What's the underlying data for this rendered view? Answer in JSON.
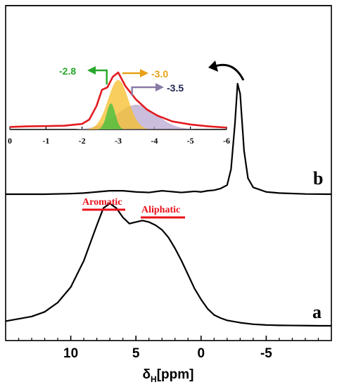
{
  "chart_data": [
    {
      "type": "line",
      "xlabel_main": "δ",
      "xlabel_sub": "H",
      "xlabel_unit": "[ppm]",
      "xlim": [
        15,
        -10
      ],
      "x_reversed": true,
      "xticks": [
        10,
        5,
        0,
        -5
      ],
      "xtick_labels": [
        "10",
        "5",
        "0",
        "-5"
      ],
      "series": [
        {
          "name": "a",
          "x": [
            15,
            13,
            12,
            11,
            10,
            9,
            8,
            7.5,
            7,
            6.5,
            6,
            5.5,
            5,
            4.5,
            4,
            3.5,
            3,
            2.5,
            2,
            1.5,
            1,
            0.5,
            0,
            -0.5,
            -1,
            -1.5,
            -2,
            -3,
            -4,
            -5,
            -6,
            -7,
            -8,
            -9,
            -10
          ],
          "y": [
            0.03,
            0.06,
            0.09,
            0.15,
            0.25,
            0.42,
            0.65,
            0.76,
            0.79,
            0.76,
            0.7,
            0.66,
            0.67,
            0.68,
            0.67,
            0.65,
            0.62,
            0.57,
            0.5,
            0.42,
            0.33,
            0.24,
            0.17,
            0.11,
            0.07,
            0.05,
            0.035,
            0.02,
            0.01,
            0.005,
            0.003,
            0.002,
            0.001,
            0.0,
            0.0
          ]
        },
        {
          "name": "b",
          "x": [
            15,
            12,
            10,
            9,
            8,
            7,
            6,
            5,
            4,
            3,
            2.5,
            2,
            1.5,
            1,
            0.5,
            0,
            -0.5,
            -1,
            -1.5,
            -2,
            -2.3,
            -2.6,
            -2.8,
            -3.0,
            -3.3,
            -3.6,
            -4,
            -5,
            -6,
            -8,
            -10
          ],
          "y": [
            0.0,
            0.0,
            0.005,
            0.01,
            0.02,
            0.03,
            0.03,
            0.02,
            0.015,
            0.03,
            0.025,
            0.02,
            0.015,
            0.02,
            0.025,
            0.02,
            0.03,
            0.035,
            0.05,
            0.08,
            0.22,
            0.62,
            0.97,
            0.88,
            0.38,
            0.14,
            0.06,
            0.02,
            0.01,
            0.002,
            0.0
          ]
        }
      ],
      "labels": {
        "a": "a",
        "b": "b",
        "aromatic": "Aromatic",
        "aliphatic": "Aliphatic"
      },
      "colors": {
        "spectrum": "#000000",
        "region_label": "#e8101a"
      }
    },
    {
      "type": "area",
      "role": "inset",
      "xlim": [
        0,
        -6
      ],
      "x_reversed": true,
      "xticks": [
        0,
        -1,
        -2,
        -3,
        -4,
        -5,
        -6
      ],
      "xtick_labels": [
        "0",
        "-1",
        "-2",
        "-3",
        "-4",
        "-5",
        "-6"
      ],
      "envelope": {
        "x": [
          0,
          -0.5,
          -1,
          -1.5,
          -2,
          -2.2,
          -2.4,
          -2.55,
          -2.7,
          -2.85,
          -3.0,
          -3.2,
          -3.5,
          -3.8,
          -4.1,
          -4.5,
          -5,
          -5.5,
          -6
        ],
        "y": [
          0.04,
          0.05,
          0.055,
          0.06,
          0.09,
          0.16,
          0.38,
          0.64,
          0.68,
          0.85,
          0.92,
          0.7,
          0.48,
          0.32,
          0.22,
          0.13,
          0.08,
          0.05,
          0.03
        ],
        "color": "#e21c20"
      },
      "components": [
        {
          "center": -2.8,
          "label": "-2.8",
          "amplitude": 0.42,
          "width": 0.12,
          "color": "#3cbf3c"
        },
        {
          "center": -3.0,
          "label": "-3.0",
          "amplitude": 0.8,
          "width": 0.28,
          "color": "#f5be2a"
        },
        {
          "center": -3.5,
          "label": "-3.5",
          "amplitude": 0.4,
          "width": 0.55,
          "color": "#b8a8d0"
        }
      ],
      "arrow_label_colors": {
        "-2.8": "#27a82b",
        "-3.0": "#e8a116",
        "-3.5": "#1d2252"
      },
      "arrow_colors": {
        "-2.8": "#27a82b",
        "-3.0": "#e8a116",
        "-3.5": "#8a7aa6"
      }
    }
  ]
}
